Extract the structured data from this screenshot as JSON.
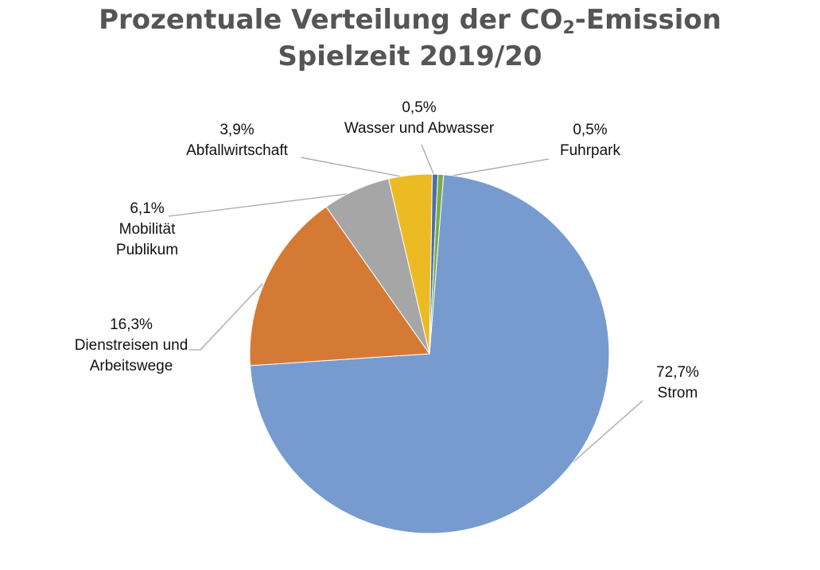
{
  "chart_data": {
    "type": "pie",
    "title": {
      "line1_pre": "Prozentuale Verteilung der CO",
      "line1_sub": "2",
      "line1_post": "-Emission",
      "line2": "Spielzeit 2019/20"
    },
    "legend": "none",
    "slices": [
      {
        "name": "Strom",
        "value": 72.7,
        "label": "72,7%",
        "color": "#779bcf"
      },
      {
        "name": "Dienstreisen und Arbeitswege",
        "name_lines": [
          "Dienstreisen und",
          "Arbeitswege"
        ],
        "value": 16.3,
        "label": "16,3%",
        "color": "#d57a35"
      },
      {
        "name": "Mobilität Publikum",
        "name_lines": [
          "Mobilität",
          "Publikum"
        ],
        "value": 6.1,
        "label": "6,1%",
        "color": "#a6a6a6"
      },
      {
        "name": "Abfallwirtschaft",
        "value": 3.9,
        "label": "3,9%",
        "color": "#ecba23"
      },
      {
        "name": "Wasser und Abwasser",
        "value": 0.5,
        "label": "0,5%",
        "color": "#4a6fae"
      },
      {
        "name": "Fuhrpark",
        "value": 0.5,
        "label": "0,5%",
        "color": "#77ab4a"
      }
    ]
  }
}
